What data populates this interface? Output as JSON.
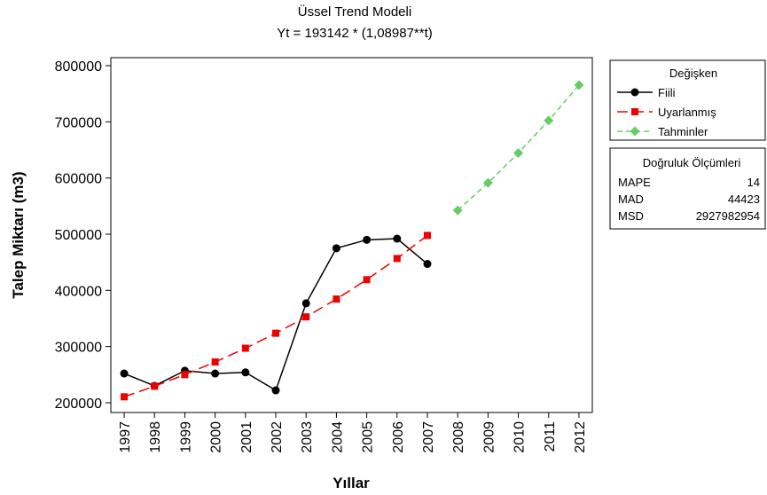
{
  "chart_data": {
    "type": "line",
    "title": "Üssel Trend Modeli",
    "subtitle": "Yt = 193142 * (1,08987**t)",
    "x_label": "Yıllar",
    "y_label": "Talep Miktarı (m3)",
    "x": [
      1997,
      1998,
      1999,
      2000,
      2001,
      2002,
      2003,
      2004,
      2005,
      2006,
      2007,
      2008,
      2009,
      2010,
      2011,
      2012
    ],
    "series": [
      {
        "name": "Fiili",
        "color": "#000000",
        "marker": "circle",
        "dash": "none",
        "values": [
          252000,
          230000,
          257000,
          252000,
          254000,
          222000,
          377000,
          475000,
          490000,
          492000,
          447000,
          null,
          null,
          null,
          null,
          null
        ]
      },
      {
        "name": "Uyarlanmış",
        "color": "#ee0000",
        "marker": "square",
        "dash": "12 6",
        "values": [
          210500,
          229400,
          250000,
          272500,
          297000,
          323700,
          352800,
          384500,
          419000,
          456700,
          497800,
          null,
          null,
          null,
          null,
          null
        ]
      },
      {
        "name": "Tahminler",
        "color": "#66cc66",
        "marker": "diamond",
        "dash": "6 4",
        "values": [
          null,
          null,
          null,
          null,
          null,
          null,
          null,
          null,
          null,
          null,
          null,
          542500,
          591300,
          644400,
          702300,
          765400
        ]
      }
    ],
    "xlim": [
      1996.56,
      2012.44
    ],
    "xticks": [
      1997,
      1998,
      1999,
      2000,
      2001,
      2002,
      2003,
      2004,
      2005,
      2006,
      2007,
      2008,
      2009,
      2010,
      2011,
      2012
    ],
    "ylim": [
      182600,
      814200
    ],
    "yticks": [
      200000,
      300000,
      400000,
      500000,
      600000,
      700000,
      800000
    ],
    "legend_title": "Değişken",
    "accuracy": {
      "title": "Doğruluk Ölçümleri",
      "rows": [
        [
          "MAPE",
          14
        ],
        [
          "MAD",
          44423
        ],
        [
          "MSD",
          2927982954
        ]
      ]
    }
  }
}
